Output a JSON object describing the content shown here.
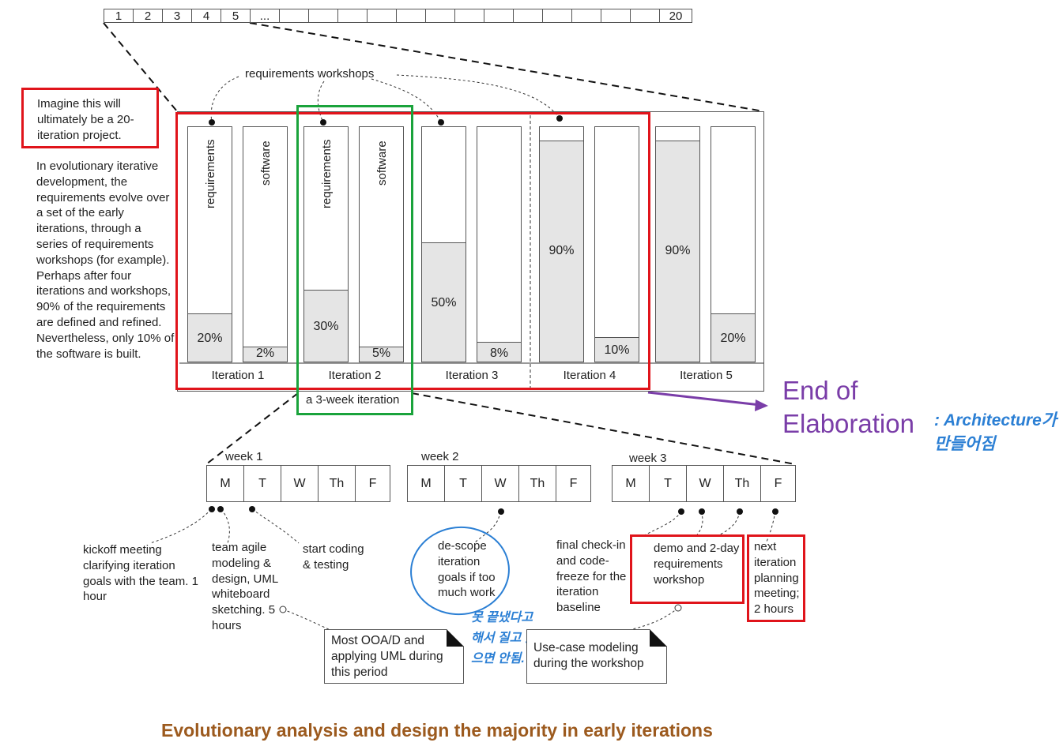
{
  "iteration_strip": {
    "cells": [
      "1",
      "2",
      "3",
      "4",
      "5",
      "...",
      "",
      "",
      "",
      "",
      "",
      "",
      "",
      "",
      "",
      "",
      "",
      "",
      "",
      "20"
    ]
  },
  "left_note": {
    "boxed": "Imagine this will ultimately be a 20-iteration project.",
    "body": "In evolutionary iterative development, the requirements evolve over a set of the early iterations, through a series of requirements workshops (for example). Perhaps after four iterations and workshops, 90% of the requirements are defined and refined. Nevertheless, only 10% of the software is built."
  },
  "workshops_label": "requirements workshops",
  "bars": {
    "requirements_label": "requirements",
    "software_label": "software"
  },
  "iterations": [
    {
      "label": "Iteration 1",
      "req": 20,
      "req_text": "20%",
      "sw": 2,
      "sw_text": "2%"
    },
    {
      "label": "Iteration 2",
      "req": 30,
      "req_text": "30%",
      "sw": 5,
      "sw_text": "5%"
    },
    {
      "label": "Iteration 3",
      "req": 50,
      "req_text": "50%",
      "sw": 8,
      "sw_text": "8%"
    },
    {
      "label": "Iteration 4",
      "req": 90,
      "req_text": "90%",
      "sw": 10,
      "sw_text": "10%"
    },
    {
      "label": "Iteration 5",
      "req": 90,
      "req_text": "90%",
      "sw": 20,
      "sw_text": "20%"
    }
  ],
  "three_week_label": "a 3-week iteration",
  "end_of_elaboration": {
    "line1": "End of",
    "line2": "Elaboration",
    "annotation": ": Architecture가 만들어짐"
  },
  "weeks": [
    {
      "label": "week 1",
      "days": [
        "M",
        "T",
        "W",
        "Th",
        "F"
      ]
    },
    {
      "label": "week 2",
      "days": [
        "M",
        "T",
        "W",
        "Th",
        "F"
      ]
    },
    {
      "label": "week 3",
      "days": [
        "M",
        "T",
        "W",
        "Th",
        "F"
      ]
    }
  ],
  "notes": {
    "kickoff": "kickoff meeting clarifying iteration goals with the team. 1 hour",
    "modeling": "team agile modeling & design, UML whiteboard sketching. 5 hours",
    "coding": "start coding & testing",
    "descope": "de-scope iteration goals if too much work",
    "descope_annotation": "못 끝냈다고 해서 질고 있으면 안됨.",
    "final_checkin": "final check-in and code-freeze for the iteration baseline",
    "demo": "demo and 2-day requirements workshop",
    "next_planning": "next iteration planning meeting; 2 hours"
  },
  "callouts": {
    "ooad": "Most OOA/D and applying UML during this period",
    "usecase": "Use-case modeling during the workshop"
  },
  "caption": "Evolutionary analysis and design the majority in early iterations",
  "colors": {
    "red_box": "#e0141b",
    "green_box": "#1aa33b",
    "purple": "#7a3da8",
    "blue_ink": "#2b7fd4",
    "caption": "#9c5a1e",
    "bar_fill": "#e5e5e5"
  }
}
